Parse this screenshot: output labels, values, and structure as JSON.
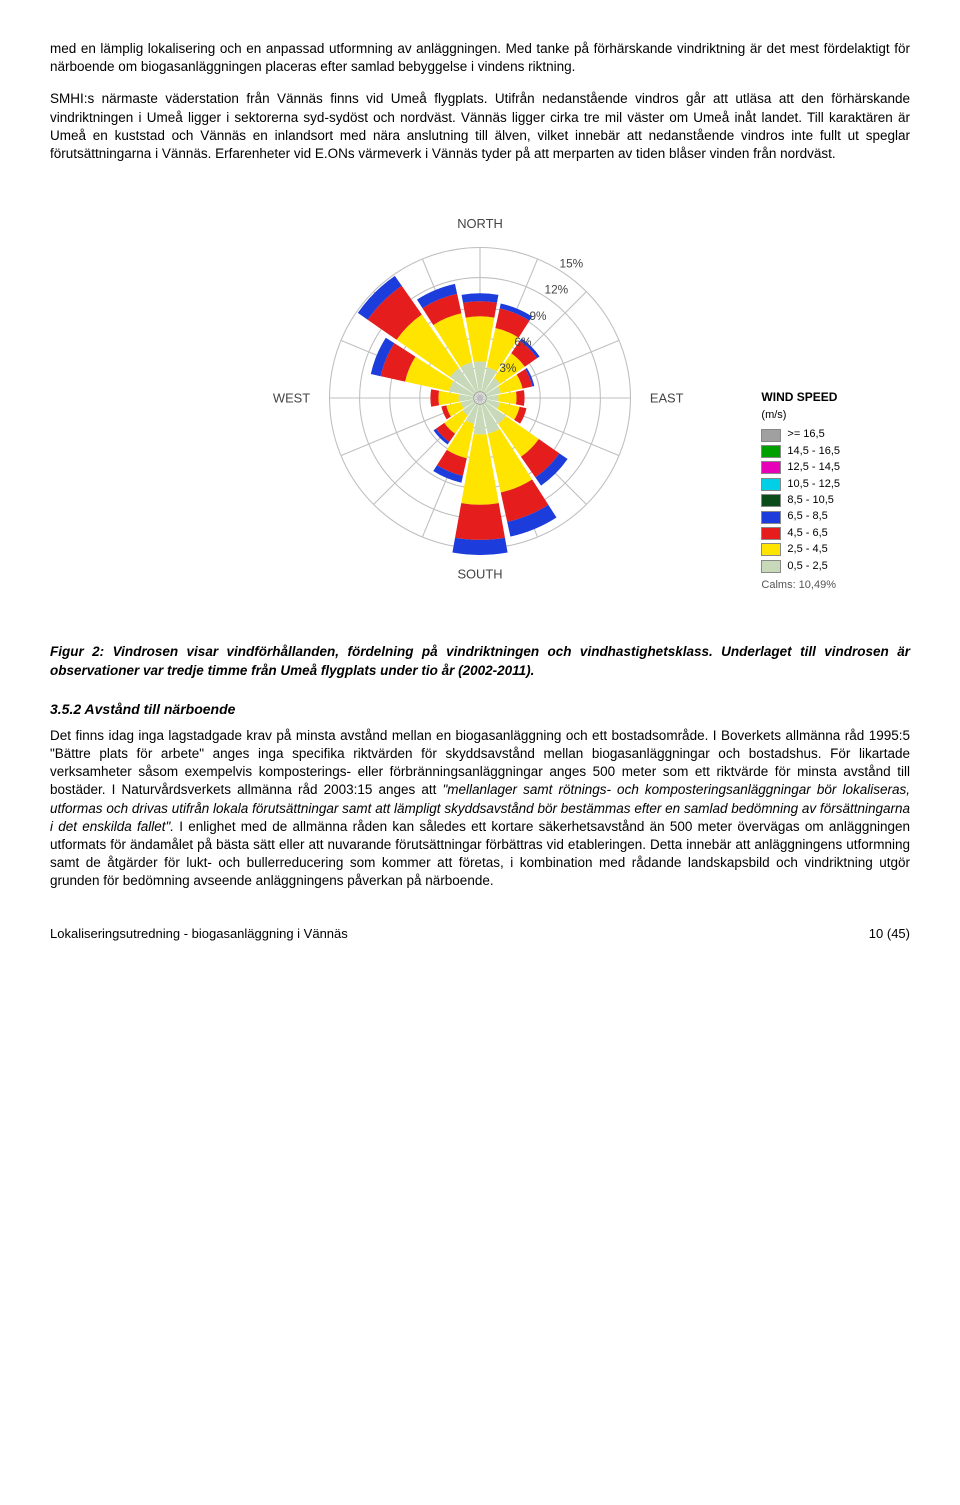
{
  "paragraphs": {
    "p1": "med en lämplig lokalisering och en anpassad utformning av anläggningen. Med tanke på förhärskande vindriktning är det mest fördelaktigt för närboende om biogasanläggningen placeras efter samlad bebyggelse i vindens riktning.",
    "p2_pre": "SMHI:s närmaste väderstation från Vännäs finns vid Umeå flygplats. Utifrån nedanstående vindros går att utläsa att den förhärskande vindriktningen i Umeå ligger i sektorerna syd-sydöst och nordväst. Vännäs ligger cirka tre mil väster om Umeå inåt landet. Till karaktären är Umeå en kuststad och Vännäs en inlandsort med nära anslutning till älven, vilket innebär att nedanstående vindros inte fullt ut speglar förutsättningarna i Vännäs. Erfarenheter vid E.ONs värmeverk i Vännäs tyder på att merparten av tiden blåser vinden från nordväst."
  },
  "caption": "Figur 2: Vindrosen visar vindförhållanden, fördelning på vindriktningen och vindhastighetsklass. Underlaget till vindrosen är observationer var tredje timme från Umeå flygplats under tio år (2002-2011).",
  "subhead": "3.5.2   Avstånd till närboende",
  "p3": "Det finns idag inga lagstadgade krav på minsta avstånd mellan en biogasanläggning och ett bostadsområde. I Boverkets allmänna råd 1995:5 \"Bättre plats för arbete\" anges inga specifika riktvärden för skyddsavstånd mellan biogasanläggningar och bostadshus. För likartade verksamheter såsom exempelvis komposterings- eller förbränningsanläggningar anges 500 meter som ett riktvärde för minsta avstånd till bostäder. I Naturvårdsverkets allmänna råd 2003:15 anges att ",
  "p3_italic": "\"mellanlager samt rötnings- och komposteringsanläggningar bör lokaliseras, utformas och drivas utifrån lokala förutsättningar samt att lämpligt skyddsavstånd bör bestämmas efter en samlad bedömning av försättningarna i det enskilda fallet\".",
  "p3_post": " I enlighet med de allmänna råden kan således ett kortare säkerhetsavstånd än 500 meter övervägas om anläggningen utformats för ändamålet på bästa sätt eller att nuvarande förutsättningar förbättras vid etableringen. Detta innebär att anläggningens utformning samt de åtgärder för lukt- och bullerreducering som kommer att företas, i kombination med rådande landskapsbild och vindriktning utgör grunden för bedömning avseende anläggningens påverkan på närboende.",
  "footer_left": "Lokaliseringsutredning - biogasanläggning i Vännäs",
  "footer_right": "10 (45)",
  "windrose": {
    "grid_color": "#bfbfbf",
    "axis_color": "#888888",
    "background": "#ffffff",
    "compass": {
      "N": "NORTH",
      "E": "EAST",
      "S": "SOUTH",
      "W": "WEST"
    },
    "rings": [
      {
        "pct": 3,
        "r": 28,
        "label": "3%"
      },
      {
        "pct": 6,
        "r": 56,
        "label": "6%"
      },
      {
        "pct": 9,
        "r": 84,
        "label": "9%"
      },
      {
        "pct": 12,
        "r": 112,
        "label": "12%"
      },
      {
        "pct": 15,
        "r": 140,
        "label": "15%"
      }
    ],
    "n_sectors": 16,
    "speed_colors": {
      "0.5-2.5": "#c7d9b8",
      "2.5-4.5": "#ffe400",
      "4.5-6.5": "#e51d1d",
      "6.5-8.5": "#1c3ddb",
      "8.5-10.5": "#0b4d1a",
      "10.5-12.5": "#00d0e6",
      "12.5-14.5": "#e600b8",
      "14.5-16.5": "#00a000",
      ">=16.5": "#a0a0a0"
    },
    "sectors": [
      {
        "dir": 0,
        "stack": [
          3.0,
          4.5,
          1.5,
          0.8
        ]
      },
      {
        "dir": 22.5,
        "stack": [
          2.5,
          4.0,
          2.0,
          0.5
        ]
      },
      {
        "dir": 45,
        "stack": [
          1.8,
          3.0,
          1.5,
          0.3
        ]
      },
      {
        "dir": 67.5,
        "stack": [
          1.5,
          2.2,
          1.0,
          0.2
        ]
      },
      {
        "dir": 90,
        "stack": [
          1.2,
          1.8,
          0.8
        ]
      },
      {
        "dir": 112.5,
        "stack": [
          1.4,
          2.0,
          0.7
        ]
      },
      {
        "dir": 135,
        "stack": [
          2.5,
          4.0,
          2.5,
          1.0
        ]
      },
      {
        "dir": 157.5,
        "stack": [
          3.0,
          6.0,
          3.0,
          1.5
        ]
      },
      {
        "dir": 180,
        "stack": [
          3.0,
          7.0,
          3.5,
          1.5
        ]
      },
      {
        "dir": 202.5,
        "stack": [
          2.0,
          3.5,
          1.8,
          0.7
        ]
      },
      {
        "dir": 225,
        "stack": [
          1.5,
          2.2,
          1.0,
          0.3
        ]
      },
      {
        "dir": 247.5,
        "stack": [
          1.3,
          1.5,
          0.5
        ]
      },
      {
        "dir": 270,
        "stack": [
          1.5,
          2.0,
          0.8
        ]
      },
      {
        "dir": 292.5,
        "stack": [
          2.5,
          4.5,
          2.5,
          1.0
        ]
      },
      {
        "dir": 315,
        "stack": [
          3.0,
          6.5,
          3.5,
          1.2
        ]
      },
      {
        "dir": 337.5,
        "stack": [
          3.0,
          5.0,
          2.0,
          1.0
        ]
      }
    ],
    "legend": {
      "title": "WIND SPEED",
      "unit": "(m/s)",
      "rows": [
        {
          "label": ">= 16,5",
          "color": "#a0a0a0"
        },
        {
          "label": "14,5 - 16,5",
          "color": "#00a000"
        },
        {
          "label": "12,5 - 14,5",
          "color": "#e600b8"
        },
        {
          "label": "10,5 - 12,5",
          "color": "#00d0e6"
        },
        {
          "label": "8,5 - 10,5",
          "color": "#0b4d1a"
        },
        {
          "label": "6,5 - 8,5",
          "color": "#1c3ddb"
        },
        {
          "label": "4,5 - 6,5",
          "color": "#e51d1d"
        },
        {
          "label": "2,5 - 4,5",
          "color": "#ffe400"
        },
        {
          "label": "0,5 - 2,5",
          "color": "#c7d9b8"
        }
      ],
      "calms": "Calms: 10,49%"
    }
  }
}
